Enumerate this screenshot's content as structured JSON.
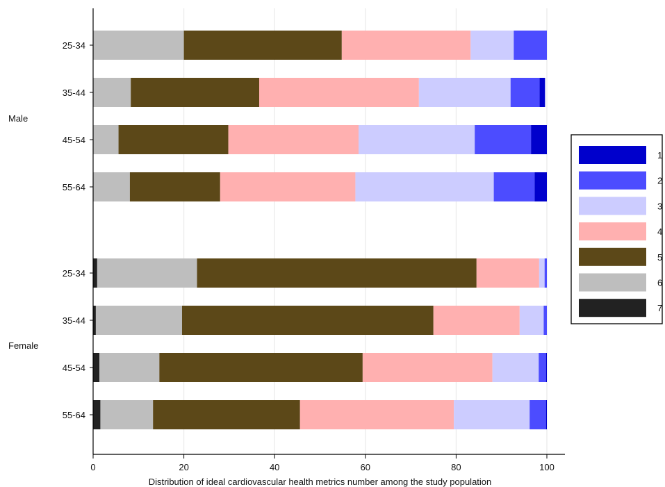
{
  "chart_data": {
    "type": "bar",
    "orientation": "horizontal",
    "stacked": true,
    "xlabel": "Distribution of ideal cardiovascular health metrics number among the study population",
    "xlim": [
      0,
      100
    ],
    "xticks": [
      "0",
      "20",
      "40",
      "60",
      "80",
      "100"
    ],
    "grid": true,
    "legend_position": "right",
    "groups": [
      {
        "name": "Male",
        "categories": [
          "25-34",
          "35-44",
          "45-54",
          "55-64"
        ]
      },
      {
        "name": "Female",
        "categories": [
          "25-34",
          "35-44",
          "45-54",
          "55-64"
        ]
      }
    ],
    "segment_order": [
      "7",
      "6",
      "5",
      "4",
      "3",
      "2",
      "1"
    ],
    "series": [
      {
        "name": "1",
        "color": "#0000cc",
        "values": [
          0,
          1.2,
          3.5,
          2.7,
          0,
          0,
          0.2,
          0.2
        ]
      },
      {
        "name": "2",
        "color": "#4c4cff",
        "values": [
          7.3,
          6.4,
          12.4,
          9.0,
          0.5,
          0.7,
          1.6,
          3.6
        ]
      },
      {
        "name": "3",
        "color": "#ccccff",
        "values": [
          9.5,
          20.2,
          25.6,
          30.5,
          1.2,
          5.3,
          10.2,
          16.7
        ]
      },
      {
        "name": "4",
        "color": "#ffb0b0",
        "values": [
          28.4,
          35.2,
          28.7,
          29.8,
          13.8,
          19.0,
          28.6,
          33.9
        ]
      },
      {
        "name": "5",
        "color": "#5c4818",
        "values": [
          34.8,
          28.3,
          24.2,
          19.9,
          61.6,
          55.4,
          44.8,
          32.4
        ]
      },
      {
        "name": "6",
        "color": "#bebebe",
        "values": [
          20.0,
          8.3,
          5.6,
          8.1,
          22.0,
          19.0,
          13.2,
          11.6
        ]
      },
      {
        "name": "7",
        "color": "#222222",
        "values": [
          0,
          0,
          0,
          0,
          0.9,
          0.6,
          1.4,
          1.6
        ]
      }
    ]
  }
}
